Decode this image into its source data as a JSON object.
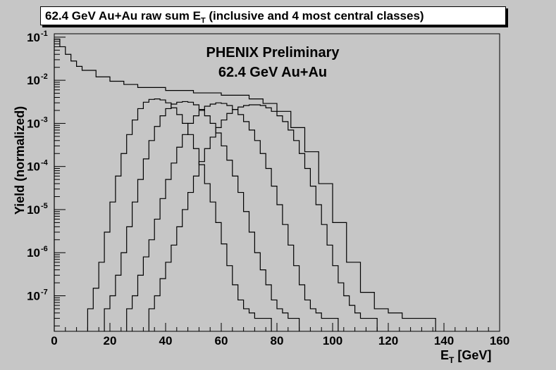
{
  "title_parts": {
    "main": "62.4 GeV Au+Au raw sum E",
    "sub": "T",
    "rest": " (inclusive and 4 most central classes)"
  },
  "annotation": {
    "line1": "PHENIX Preliminary",
    "line2": "62.4 GeV Au+Au"
  },
  "colors": {
    "background": "#c6c6c6",
    "frame": "#000000",
    "lines": "#000000"
  },
  "chart_data": {
    "type": "line",
    "title": "62.4 GeV Au+Au raw sum E_T (inclusive and 4 most central classes)",
    "xlabel": "E_T [GeV]",
    "ylabel": "Yield (normalized)",
    "xlim": [
      0,
      160
    ],
    "ylim": [
      1.5e-08,
      0.12
    ],
    "yscale": "log",
    "x_ticks": [
      0,
      20,
      40,
      60,
      80,
      100,
      120,
      140,
      160
    ],
    "x_tick_labels": [
      "0",
      "20",
      "40",
      "60",
      "80",
      "100",
      "120",
      "140",
      "160"
    ],
    "y_ticks": [
      1e-07,
      1e-06,
      1e-05,
      0.0001,
      0.001,
      0.01,
      0.1
    ],
    "y_tick_labels": [
      {
        "base": "10",
        "exp": "-7"
      },
      {
        "base": "10",
        "exp": "-6"
      },
      {
        "base": "10",
        "exp": "-5"
      },
      {
        "base": "10",
        "exp": "-4"
      },
      {
        "base": "10",
        "exp": "-3"
      },
      {
        "base": "10",
        "exp": "-2"
      },
      {
        "base": "10",
        "exp": "-1"
      }
    ],
    "xlabel_parts": {
      "main": "E",
      "sub": "T",
      "rest": " [GeV]"
    },
    "grid": false,
    "series": [
      {
        "x": [
          0,
          2,
          4,
          6,
          8,
          10,
          15,
          20,
          25,
          30,
          40,
          50,
          60,
          70,
          75,
          80,
          85,
          90,
          95,
          100,
          105,
          110,
          115,
          120,
          125,
          130,
          135
        ],
        "y": [
          0.09,
          0.06,
          0.04,
          0.028,
          0.021,
          0.017,
          0.012,
          0.0095,
          0.008,
          0.0068,
          0.0058,
          0.0051,
          0.0045,
          0.0037,
          0.0029,
          0.0019,
          0.0008,
          0.00022,
          4e-05,
          5e-06,
          6e-07,
          1.2e-07,
          5e-08,
          4e-08,
          3e-08,
          3e-08,
          3e-08
        ]
      },
      {
        "x": [
          12,
          14,
          16,
          18,
          20,
          22,
          24,
          26,
          28,
          30,
          32,
          34,
          36,
          38,
          40,
          42,
          44,
          46,
          48,
          50,
          52,
          54,
          56,
          58,
          60,
          62,
          64,
          66,
          68,
          70,
          72,
          74,
          76
        ],
        "y": [
          5e-08,
          1.5e-07,
          6e-07,
          3e-06,
          1.5e-05,
          6e-05,
          0.0002,
          0.00055,
          0.0012,
          0.0022,
          0.0031,
          0.0036,
          0.0037,
          0.0035,
          0.003,
          0.0023,
          0.0016,
          0.001,
          0.00055,
          0.00026,
          0.00011,
          4e-05,
          1.5e-05,
          5e-06,
          1.6e-06,
          5e-07,
          1.8e-07,
          8e-08,
          5e-08,
          4e-08,
          3e-08,
          3e-08,
          3e-08
        ]
      },
      {
        "x": [
          18,
          20,
          22,
          24,
          26,
          28,
          30,
          32,
          34,
          36,
          38,
          40,
          42,
          44,
          46,
          48,
          50,
          52,
          54,
          56,
          58,
          60,
          62,
          64,
          66,
          68,
          70,
          72,
          74,
          76,
          78,
          80,
          82,
          84,
          86
        ],
        "y": [
          5e-08,
          1e-07,
          3e-07,
          1e-06,
          4e-06,
          1.5e-05,
          5e-05,
          0.00015,
          0.0004,
          0.00085,
          0.0015,
          0.0022,
          0.0028,
          0.0031,
          0.0032,
          0.0031,
          0.0027,
          0.0021,
          0.0015,
          0.001,
          0.0006,
          0.0003,
          0.00014,
          6e-05,
          2.5e-05,
          9e-06,
          3e-06,
          1e-06,
          4e-07,
          1.8e-07,
          8e-08,
          5e-08,
          4e-08,
          3e-08,
          3e-08
        ]
      },
      {
        "x": [
          26,
          28,
          30,
          32,
          34,
          36,
          38,
          40,
          42,
          44,
          46,
          48,
          50,
          52,
          54,
          56,
          58,
          60,
          62,
          64,
          66,
          68,
          70,
          72,
          74,
          76,
          78,
          80,
          82,
          84,
          86,
          88,
          90,
          92,
          94,
          96,
          98,
          100
        ],
        "y": [
          5e-08,
          1e-07,
          3e-07,
          8e-07,
          2e-06,
          6e-06,
          1.8e-05,
          5e-05,
          0.00012,
          0.00028,
          0.00055,
          0.001,
          0.0015,
          0.002,
          0.0025,
          0.0028,
          0.003,
          0.0029,
          0.0026,
          0.0021,
          0.0016,
          0.0011,
          0.0007,
          0.0004,
          0.0002,
          9e-05,
          3.5e-05,
          1.3e-05,
          4.5e-06,
          1.5e-06,
          5e-07,
          1.8e-07,
          8e-08,
          5e-08,
          4e-08,
          3e-08,
          3e-08,
          3e-08
        ]
      },
      {
        "x": [
          34,
          36,
          38,
          40,
          42,
          44,
          46,
          48,
          50,
          52,
          54,
          56,
          58,
          60,
          62,
          64,
          66,
          68,
          70,
          72,
          74,
          76,
          78,
          80,
          82,
          84,
          86,
          88,
          90,
          92,
          94,
          96,
          98,
          100,
          102,
          104,
          106,
          108,
          110,
          112,
          114
        ],
        "y": [
          5e-08,
          1e-07,
          2.5e-07,
          6e-07,
          1.5e-06,
          4e-06,
          1e-05,
          2.5e-05,
          6e-05,
          0.00013,
          0.00026,
          0.00048,
          0.0008,
          0.0012,
          0.0017,
          0.0021,
          0.0024,
          0.0026,
          0.0027,
          0.0027,
          0.0026,
          0.0023,
          0.0019,
          0.0015,
          0.0011,
          0.0007,
          0.0004,
          0.0002,
          9e-05,
          3.5e-05,
          1.3e-05,
          4.5e-06,
          1.5e-06,
          5e-07,
          2e-07,
          1e-07,
          6e-08,
          4e-08,
          3e-08,
          3e-08,
          3e-08
        ]
      }
    ]
  }
}
